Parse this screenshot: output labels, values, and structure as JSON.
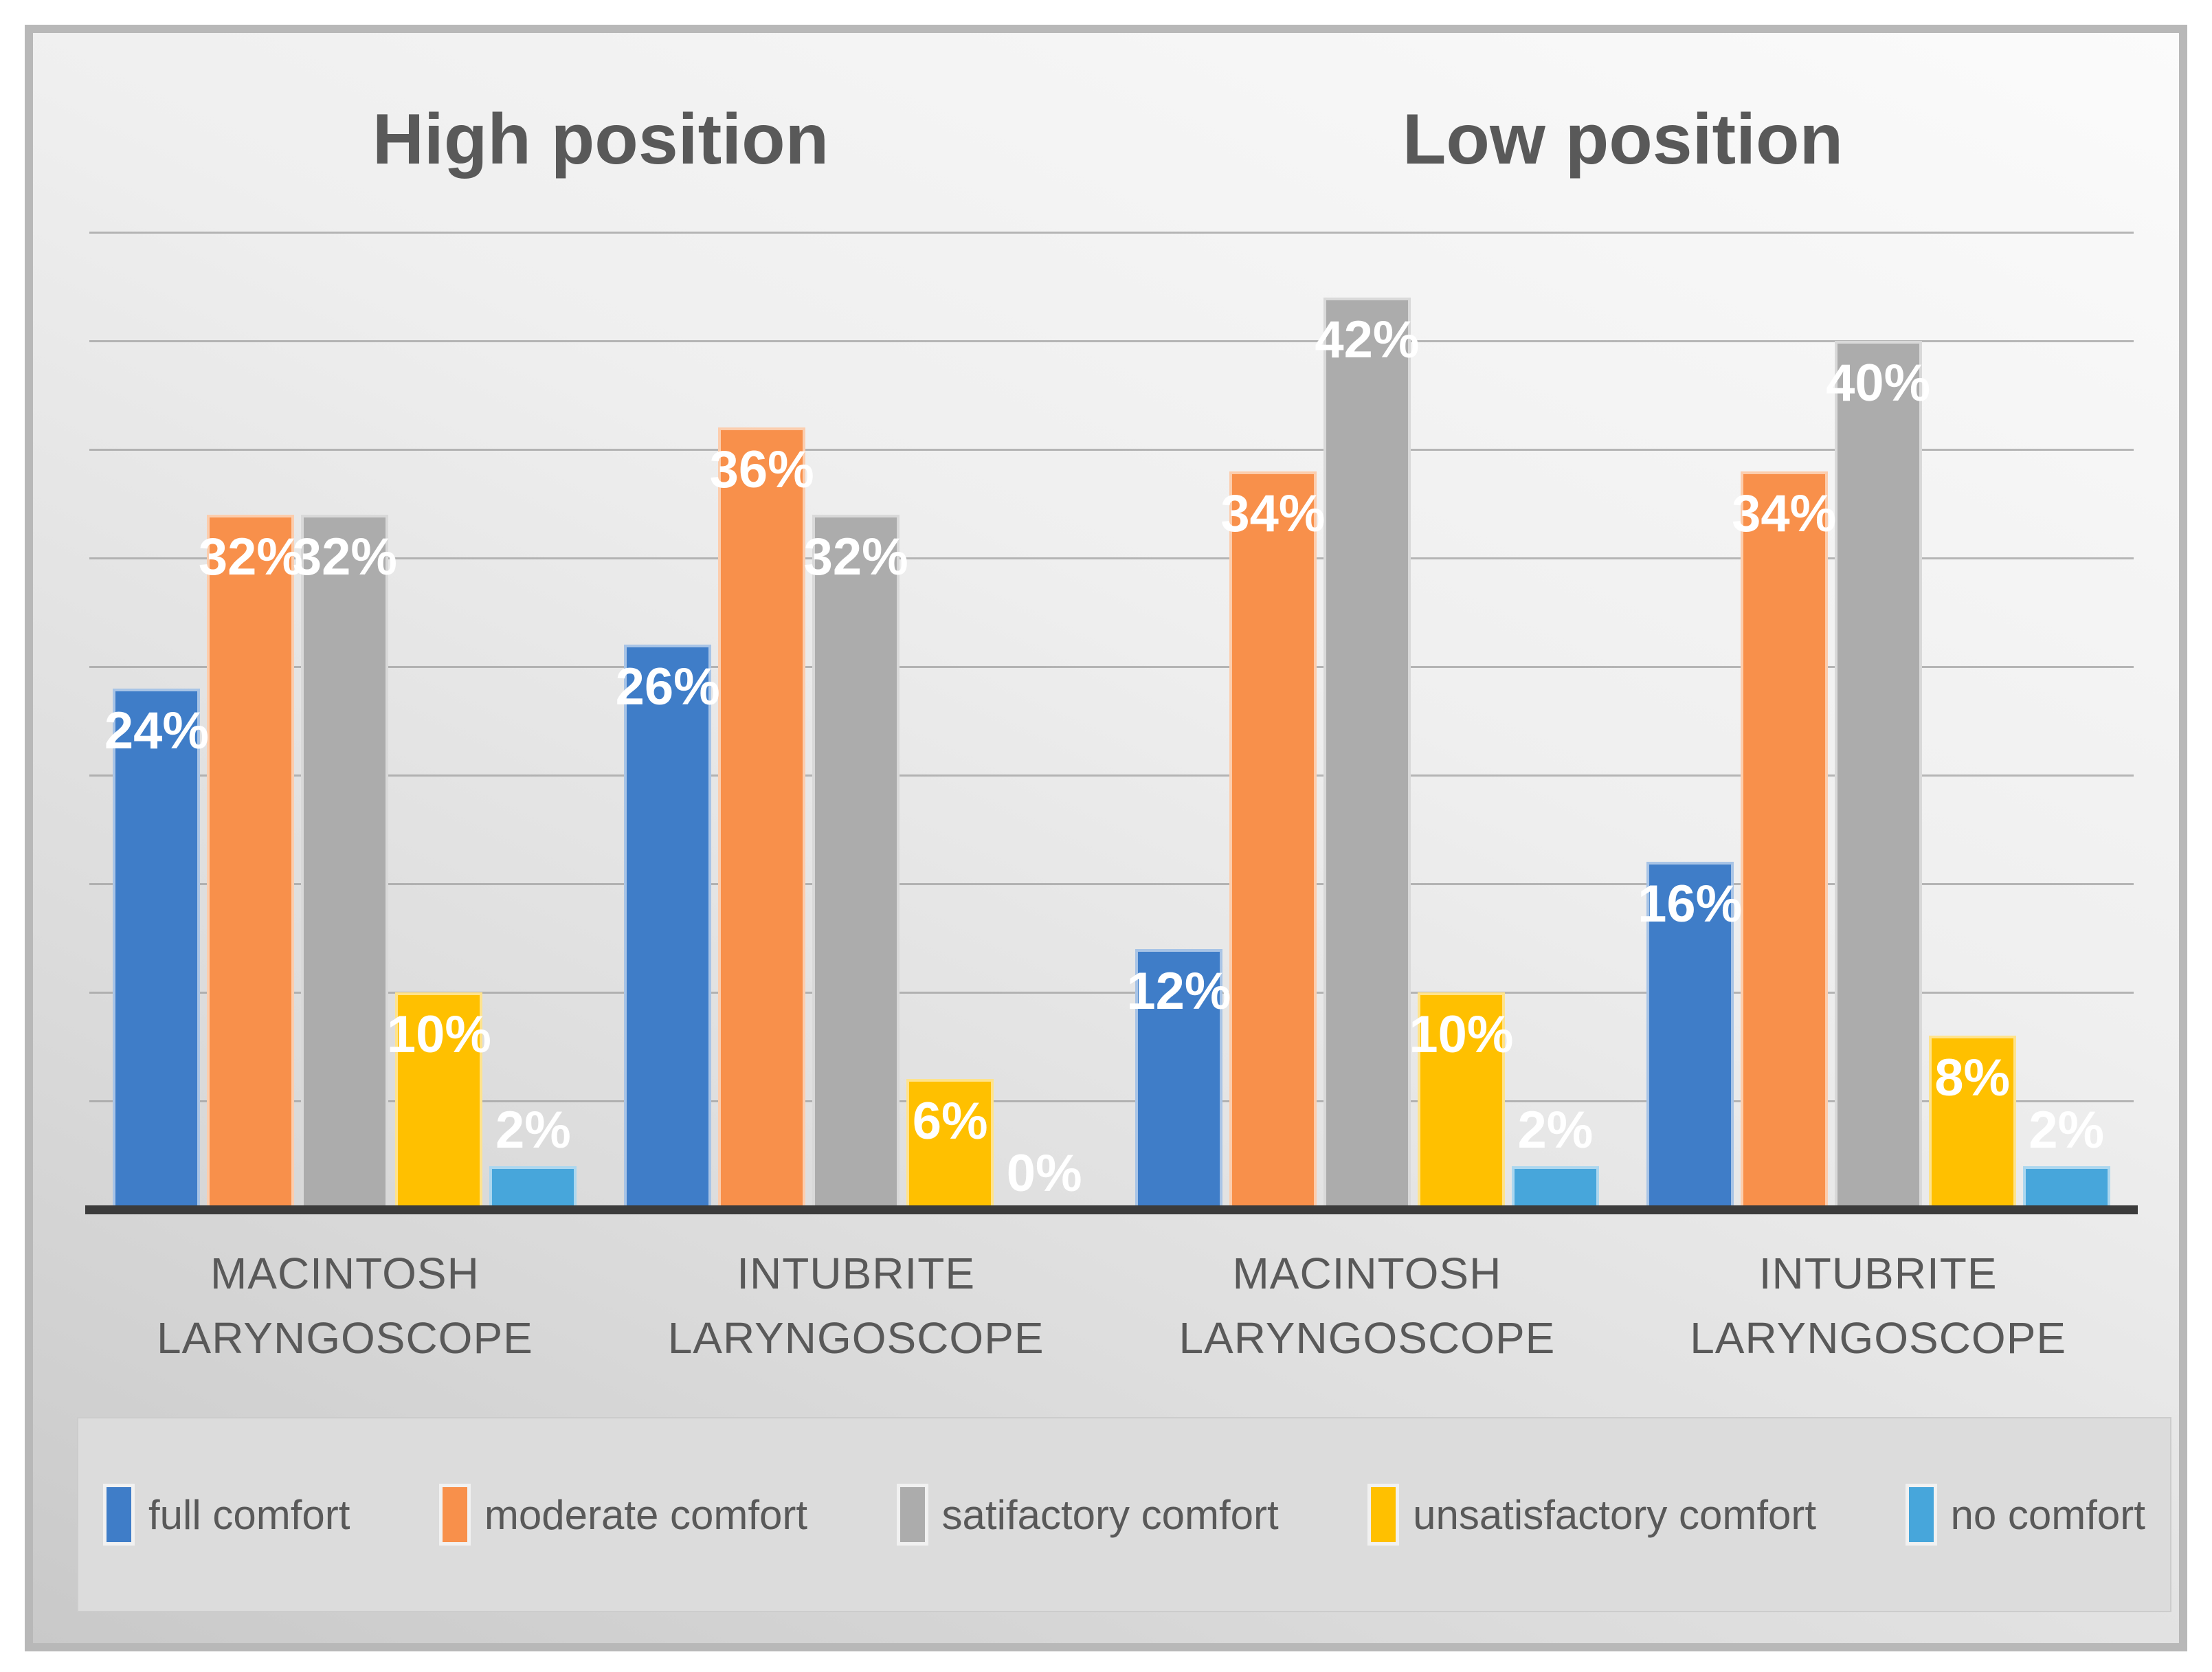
{
  "chart_data": {
    "type": "bar",
    "titles": [
      "High position",
      "Low position"
    ],
    "unit": "%",
    "ylim": [
      0,
      45
    ],
    "gridline_step": 5,
    "grid": true,
    "legend_position": "bottom",
    "text_color": "#595959",
    "categories": [
      {
        "line1": "MACINTOSH",
        "line2": "LARYNGOSCOPE",
        "section": "High position"
      },
      {
        "line1": "INTUBRITE",
        "line2": "LARYNGOSCOPE",
        "section": "High position"
      },
      {
        "line1": "MACINTOSH",
        "line2": "LARYNGOSCOPE",
        "section": "Low position"
      },
      {
        "line1": "INTUBRITE",
        "line2": "LARYNGOSCOPE",
        "section": "Low position"
      }
    ],
    "series": [
      {
        "name": "full comfort",
        "color": "#3f7dc8",
        "values": [
          24,
          26,
          12,
          16
        ],
        "labels": [
          "24%",
          "26%",
          "12%",
          "16%"
        ]
      },
      {
        "name": "moderate comfort",
        "color": "#f8904b",
        "values": [
          32,
          36,
          34,
          34
        ],
        "labels": [
          "32%",
          "36%",
          "34%",
          "34%"
        ]
      },
      {
        "name": "satifactory comfort",
        "color": "#acacac",
        "values": [
          32,
          32,
          42,
          40
        ],
        "labels": [
          "32%",
          "32%",
          "42%",
          "40%"
        ]
      },
      {
        "name": "unsatisfactory comfort",
        "color": "#ffc000",
        "values": [
          10,
          6,
          10,
          8
        ],
        "labels": [
          "10%",
          "6%",
          "10%",
          "8%"
        ]
      },
      {
        "name": "no comfort",
        "color": "#47a6db",
        "values": [
          2,
          0,
          2,
          2
        ],
        "labels": [
          "2%",
          "0%",
          "2%",
          "2%"
        ]
      }
    ]
  }
}
